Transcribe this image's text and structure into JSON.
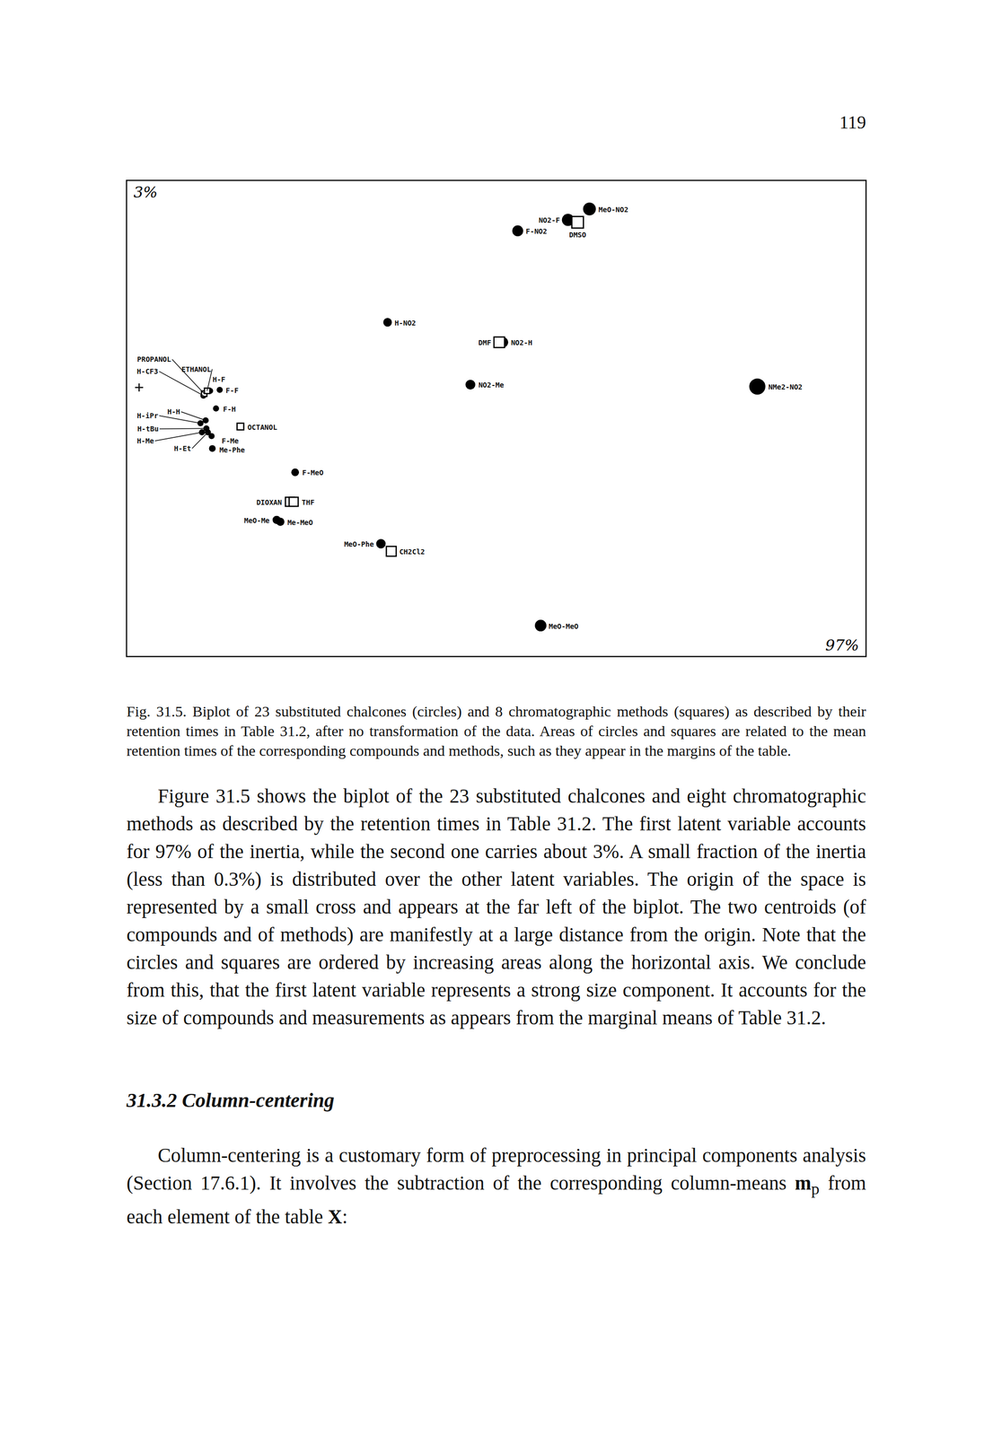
{
  "page_number": "119",
  "chart_data": {
    "type": "scatter",
    "xlabel": "97%",
    "ylabel": "3%",
    "xlim": [
      0,
      100
    ],
    "ylim": [
      0,
      100
    ],
    "tick_labels": false,
    "grid": false,
    "origin": {
      "x": 1.7,
      "y": 56.5,
      "marker": "cross"
    },
    "series": [
      {
        "marker": "circle",
        "color": "#000000",
        "labels": [
          "F-NO2",
          "NO2-F",
          "MeO-NO2",
          "H-NO2",
          "NO2-H",
          "NO2-Me",
          "NMe2-NO2",
          "H-CF3",
          "H-F",
          "F-F",
          "H-iPr",
          "H-H",
          "F-H",
          "H-tBu",
          "H-Me",
          "H-Et",
          "F-Me",
          "Me-Phe",
          "F-MeO",
          "MeO-Me",
          "Me-MeO",
          "MeO-Phe",
          "MeO-MeO"
        ],
        "x": [
          52.9,
          59.7,
          62.6,
          35.3,
          50.9,
          46.5,
          85.3,
          10.4,
          11.3,
          12.6,
          10.0,
          10.7,
          12.1,
          10.8,
          10.2,
          11.0,
          11.5,
          11.6,
          22.8,
          20.3,
          20.8,
          34.4,
          56.0
        ],
        "y": [
          89.4,
          91.7,
          94.0,
          70.2,
          66.0,
          57.1,
          56.7,
          54.8,
          55.8,
          56.0,
          49.0,
          49.6,
          52.1,
          47.9,
          47.1,
          47.1,
          46.3,
          43.7,
          38.7,
          28.7,
          28.3,
          23.7,
          6.5
        ],
        "sizes": [
          32,
          40,
          44,
          20,
          30,
          26,
          70,
          10,
          10,
          10,
          10,
          10,
          10,
          10,
          10,
          10,
          10,
          12,
          16,
          18,
          18,
          24,
          36
        ]
      },
      {
        "marker": "square",
        "color": "#000000",
        "labels": [
          "PROPANOL",
          "ETHANOL",
          "OCTANOL",
          "DIOXAN",
          "THF",
          "CH2Cl2",
          "DMF",
          "DMSO"
        ],
        "x": [
          10.5,
          10.9,
          15.4,
          22.1,
          22.6,
          35.8,
          50.4,
          61.0
        ],
        "y": [
          55.2,
          55.8,
          48.3,
          32.5,
          32.5,
          22.1,
          66.0,
          91.2
        ],
        "sizes": [
          8,
          8,
          12,
          22,
          22,
          26,
          30,
          36
        ]
      }
    ]
  },
  "caption": "Fig. 31.5. Biplot of 23 substituted chalcones (circles) and 8 chromatographic methods (squares) as described by their retention times in Table 31.2, after no transformation of the data. Areas of circles and squares are related to the mean retention times of the corresponding compounds and methods, such as they appear in the margins of the table.",
  "paragraph_1": "Figure 31.5 shows the biplot of the 23 substituted chalcones and eight chromatographic methods as described by the retention times in Table 31.2. The first latent variable accounts for 97% of the inertia, while the second one carries about 3%. A small fraction of the inertia (less than 0.3%) is distributed over the other latent variables. The origin of the space is represented by a small cross and appears at the far left of the biplot. The two centroids (of compounds and of methods) are manifestly at a large distance from the origin. Note that the circles and squares are ordered by increasing areas along the horizontal axis. We conclude from this, that the first latent variable represents a strong size component. It accounts for the size of compounds and measurements as appears from the marginal means of Table 31.2.",
  "section_heading": "31.3.2 Column-centering",
  "paragraph_2": [
    {
      "text": "Column-centering is a customary form of preprocessing in principal components analysis (Section 17.6.1). It involves the subtraction of the corresponding column-means ",
      "style": "normal"
    },
    {
      "text": "m",
      "style": "bold"
    },
    {
      "text": "p",
      "style": "subscript"
    },
    {
      "text": " from each element of the table ",
      "style": "normal"
    },
    {
      "text": "X",
      "style": "bold"
    },
    {
      "text": ":",
      "style": "normal"
    }
  ]
}
